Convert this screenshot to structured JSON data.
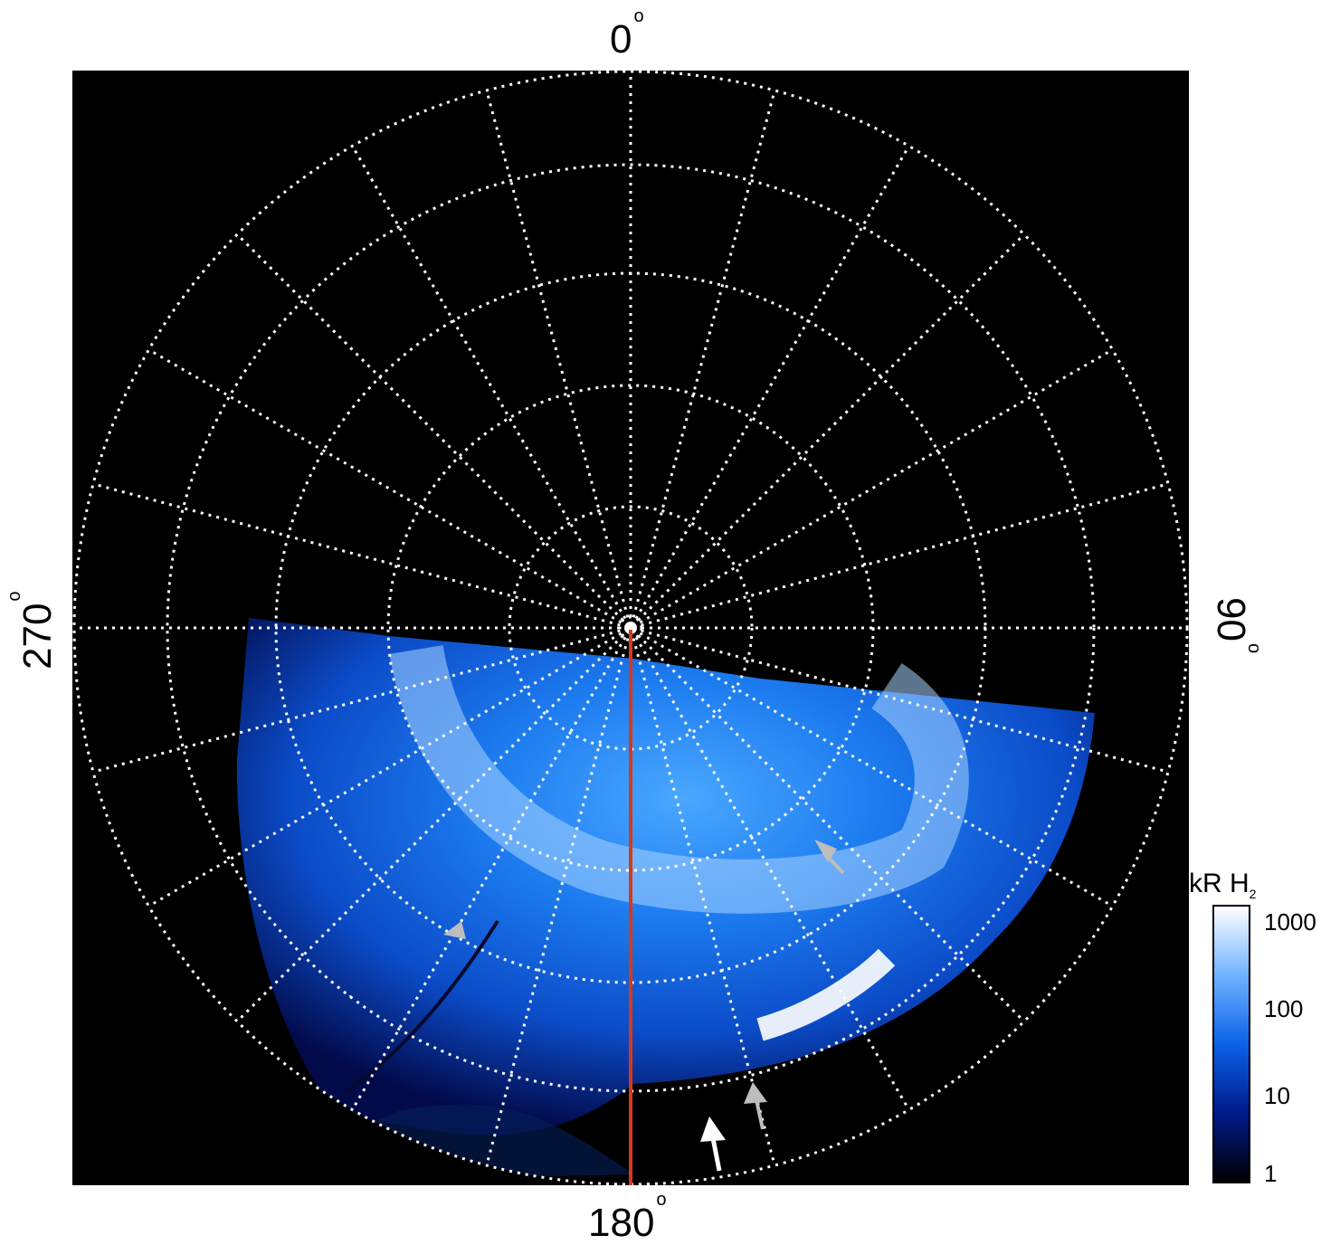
{
  "labels": {
    "top": "0",
    "bottom": "180",
    "left": "270",
    "right": "90",
    "degree_symbol": "o"
  },
  "colorbar": {
    "title_main": "kR H",
    "title_sub": "2",
    "ticks": [
      "1000",
      "100",
      "10",
      "1"
    ],
    "colors": [
      "#ffffff",
      "#6fb3ff",
      "#0a62e8",
      "#001a8c",
      "#000000"
    ]
  },
  "colors": {
    "grid": "#ffffff",
    "red_line": "#d43a1a",
    "arrow_gray": "#bdbdbd",
    "arrow_white": "#ffffff",
    "background": "#000000"
  }
}
